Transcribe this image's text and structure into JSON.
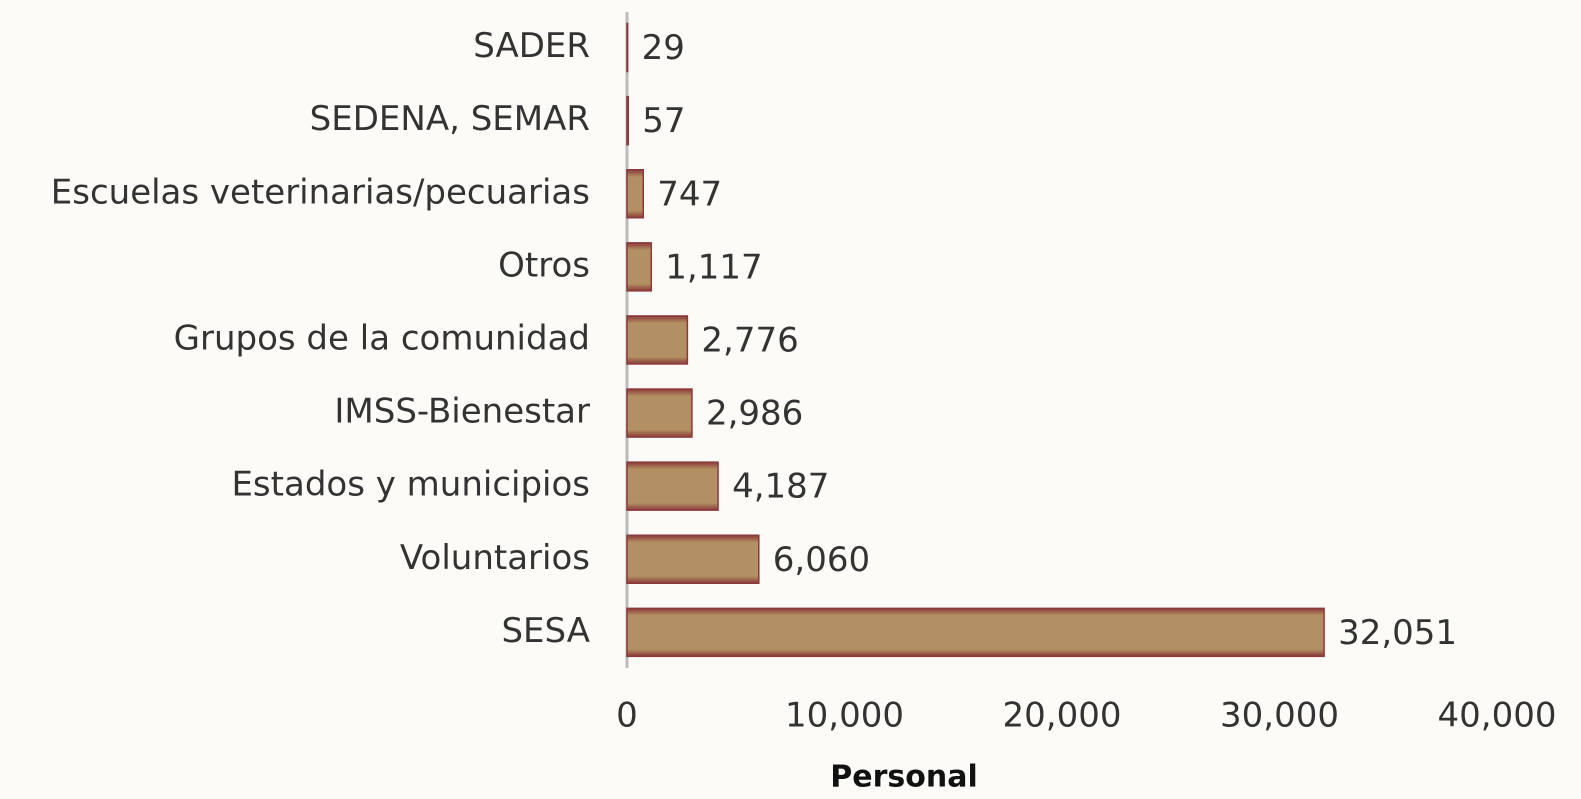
{
  "chart_data": {
    "type": "bar",
    "orientation": "horizontal",
    "x_axis_label": "Personal",
    "categories": [
      "SADER",
      "SEDENA, SEMAR",
      "Escuelas veterinarias/pecuarias",
      "Otros",
      "Grupos de la comunidad",
      "IMSS-Bienestar",
      "Estados y municipios",
      "Voluntarios",
      "SESA"
    ],
    "values": [
      29,
      57,
      747,
      1117,
      2776,
      2986,
      4187,
      6060,
      32051
    ],
    "value_labels": [
      "29",
      "57",
      "747",
      "1,117",
      "2,776",
      "2,986",
      "4,187",
      "6,060",
      "32,051"
    ],
    "color": "#b39063",
    "xlim": [
      0,
      40000
    ],
    "xticks": [
      0,
      {
        "value": 10000,
        "label": "10,000"
      },
      {
        "value": 20000,
        "label": "20,000"
      },
      {
        "value": 30000,
        "label": "30,000"
      },
      {
        "value": 40000,
        "label": "40,000"
      }
    ],
    "grid": false
  }
}
